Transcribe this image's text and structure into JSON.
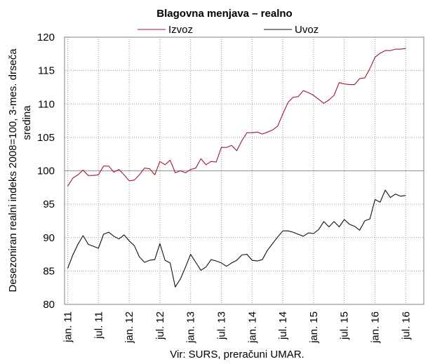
{
  "chart_data": {
    "type": "line",
    "title": "Blagovna menjava – realno",
    "ylabel": "Desezoniran realni indeks 2008=100, 3-mes. drseča sredina",
    "xlabel": "",
    "source": "Vir: SURS, preračuni UMAR.",
    "ylim": [
      80,
      120
    ],
    "yticks": [
      80,
      85,
      90,
      95,
      100,
      105,
      110,
      115,
      120
    ],
    "x": [
      "jan. 11",
      "feb. 11",
      "mar. 11",
      "apr. 11",
      "maj 11",
      "jun. 11",
      "jul. 11",
      "avg. 11",
      "sep. 11",
      "okt. 11",
      "nov. 11",
      "dec. 11",
      "jan. 12",
      "feb. 12",
      "mar. 12",
      "apr. 12",
      "maj 12",
      "jun. 12",
      "jul. 12",
      "avg. 12",
      "sep. 12",
      "okt. 12",
      "nov. 12",
      "dec. 12",
      "jan. 13",
      "feb. 13",
      "mar. 13",
      "apr. 13",
      "maj 13",
      "jun. 13",
      "jul. 13",
      "avg. 13",
      "sep. 13",
      "okt. 13",
      "nov. 13",
      "dec. 13",
      "jan. 14",
      "feb. 14",
      "mar. 14",
      "apr. 14",
      "maj 14",
      "jun. 14",
      "jul. 14",
      "avg. 14",
      "sep. 14",
      "okt. 14",
      "nov. 14",
      "dec. 14",
      "jan. 15",
      "feb. 15",
      "mar. 15",
      "apr. 15",
      "maj 15",
      "jun. 15",
      "jul. 15",
      "avg. 15",
      "sep. 15",
      "okt. 15",
      "nov. 15",
      "dec. 15",
      "jan. 16",
      "feb. 16",
      "mar. 16",
      "apr. 16",
      "maj 16",
      "jun. 16",
      "jul. 16"
    ],
    "xtick_labels": [
      "jan. 11",
      "jul. 11",
      "jan. 12",
      "jul. 12",
      "jan. 13",
      "jul. 13",
      "jan. 14",
      "jul. 14",
      "jan. 15",
      "jul. 15",
      "jan. 16",
      "jul. 16"
    ],
    "grid": true,
    "legend_position": "top",
    "series": [
      {
        "name": "Izvoz",
        "color": "#a3162c",
        "values": [
          97.7,
          98.9,
          99.4,
          100.1,
          99.3,
          99.3,
          99.4,
          100.7,
          100.7,
          99.8,
          100.2,
          99.4,
          98.5,
          98.6,
          99.4,
          100.4,
          100.3,
          99.4,
          101.4,
          100.9,
          101.6,
          99.7,
          100.0,
          99.7,
          100.2,
          100.4,
          101.8,
          100.9,
          101.4,
          101.3,
          103.5,
          103.5,
          103.8,
          103.0,
          104.5,
          105.7,
          105.7,
          105.8,
          105.5,
          105.8,
          106.1,
          106.7,
          108.5,
          110.2,
          111.0,
          111.1,
          112.0,
          111.7,
          111.3,
          110.7,
          110.1,
          110.6,
          111.3,
          113.2,
          113.0,
          112.9,
          112.9,
          113.8,
          113.9,
          115.3,
          117.0,
          117.6,
          118.0,
          118.0,
          118.2,
          118.2,
          118.3
        ]
      },
      {
        "name": "Uvoz",
        "color": "#111111",
        "values": [
          85.4,
          87.4,
          89.0,
          90.3,
          89.0,
          88.7,
          88.4,
          90.5,
          90.8,
          90.2,
          89.8,
          90.4,
          89.5,
          88.8,
          87.1,
          86.3,
          86.6,
          86.7,
          89.1,
          86.6,
          86.2,
          82.6,
          83.8,
          85.6,
          87.5,
          86.3,
          85.1,
          85.6,
          86.7,
          86.5,
          86.2,
          85.7,
          86.2,
          86.6,
          87.4,
          87.5,
          86.6,
          86.5,
          86.7,
          88.1,
          89.1,
          90.1,
          91.0,
          91.0,
          90.8,
          90.5,
          90.2,
          90.7,
          90.6,
          91.2,
          92.4,
          91.6,
          92.4,
          91.6,
          92.7,
          92.0,
          91.7,
          91.1,
          92.5,
          92.8,
          95.7,
          95.3,
          97.1,
          96.0,
          96.5,
          96.2,
          96.3
        ]
      }
    ]
  }
}
